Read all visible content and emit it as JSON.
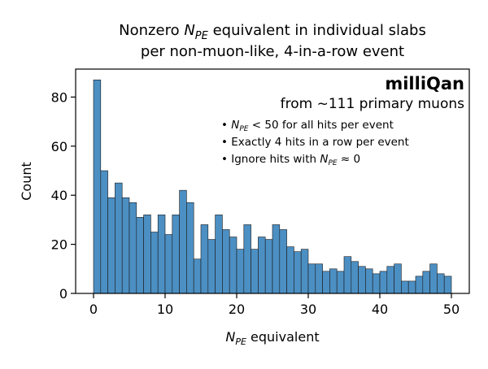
{
  "chart_data": {
    "type": "bar",
    "title_lines": [
      {
        "before": "Nonzero ",
        "sym": "N",
        "sub": "PE",
        "after": " equivalent in individual slabs"
      },
      {
        "before": "per non-muon-like, 4-in-a-row event",
        "sym": "",
        "sub": "",
        "after": ""
      }
    ],
    "xlabel": {
      "sym": "N",
      "sub": "PE",
      "after": " equivalent"
    },
    "ylabel": "Count",
    "xlim": [
      -2.5,
      52.5
    ],
    "ylim": [
      0,
      91.4
    ],
    "xticks": [
      0,
      10,
      20,
      30,
      40,
      50
    ],
    "yticks": [
      0,
      20,
      40,
      60,
      80
    ],
    "bin_width": 1,
    "bin_edges_start": 0,
    "values": [
      87,
      50,
      39,
      45,
      39,
      37,
      31,
      32,
      25,
      32,
      24,
      32,
      42,
      37,
      14,
      28,
      22,
      32,
      26,
      23,
      18,
      28,
      18,
      23,
      22,
      28,
      26,
      19,
      17,
      18,
      12,
      12,
      9,
      10,
      9,
      15,
      13,
      11,
      10,
      8,
      9,
      11,
      12,
      5,
      5,
      7,
      9,
      12,
      8,
      7
    ],
    "bar_color": "#4c8fc3",
    "annotation": {
      "brand": "milliQan",
      "subtitle": "from ~111 primary muons",
      "bullets": [
        {
          "before": "• ",
          "sym": "N",
          "sub": "PE",
          "after": " < 50 for all hits per event"
        },
        {
          "before": "• Exactly 4 hits in a row per event",
          "sym": "",
          "sub": "",
          "after": ""
        },
        {
          "before": "• Ignore hits with ",
          "sym": "N",
          "sub": "PE",
          "after": " ≈ 0"
        }
      ]
    }
  }
}
